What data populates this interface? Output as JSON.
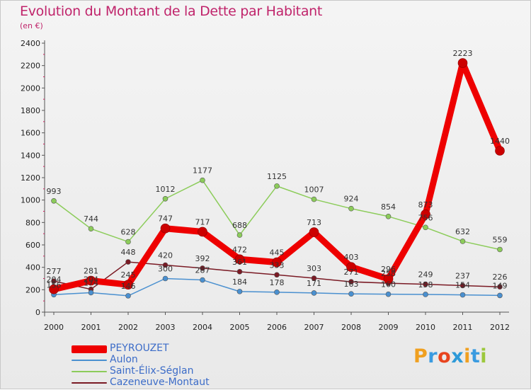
{
  "header": {
    "title": "Evolution du Montant de la Dette par Habitant",
    "subtitle": "(en €)"
  },
  "logo": {
    "letters": [
      "P",
      "r",
      "o",
      "x",
      "i",
      "t",
      "i"
    ],
    "colors": [
      "#f0a020",
      "#3a9be0",
      "#e8441e",
      "#2d9ad8",
      "#f0a020",
      "#3a9be0",
      "#9cc83c"
    ]
  },
  "chart_data": {
    "type": "line",
    "title": "Evolution du Montant de la Dette par Habitant",
    "ylabel": "(en €)",
    "xlabel": "",
    "ylim": [
      0,
      2400
    ],
    "yticks": [
      0,
      200,
      400,
      600,
      800,
      1000,
      1200,
      1400,
      1600,
      1800,
      2000,
      2200,
      2400
    ],
    "categories": [
      "2000",
      "2001",
      "2002",
      "2003",
      "2004",
      "2005",
      "2006",
      "2007",
      "2008",
      "2009",
      "2010",
      "2011",
      "2012"
    ],
    "series": [
      {
        "name": "Saint-Élix-Séglan",
        "color": "#8ccc5a",
        "values": [
          993,
          744,
          628,
          1012,
          1177,
          688,
          1125,
          1007,
          924,
          854,
          756,
          632,
          559
        ]
      },
      {
        "name": "Cazeneuve-Montaut",
        "color": "#7a1a24",
        "values": [
          277,
          204,
          448,
          420,
          392,
          361,
          333,
          303,
          271,
          258,
          249,
          237,
          226
        ]
      },
      {
        "name": "Aulon",
        "color": "#4a90d0",
        "values": [
          156,
          174,
          146,
          300,
          287,
          184,
          178,
          171,
          163,
          160,
          158,
          154,
          149
        ]
      },
      {
        "name": "PEYROUZET",
        "color": "#ee0000",
        "values": [
          204,
          281,
          245,
          747,
          717,
          472,
          445,
          713,
          403,
          296,
          873,
          2223,
          1440
        ]
      }
    ],
    "data_labels": [
      {
        "series": "Saint-Élix-Séglan",
        "labels": [
          "993",
          "744",
          "628",
          "1012",
          "1177",
          "688",
          "1125",
          "1007",
          "924",
          "854",
          "756",
          "632",
          "559"
        ]
      },
      {
        "series": "Cazeneuve-Montaut",
        "labels": [
          "277",
          "204",
          "448",
          "420",
          "392",
          "361",
          "333",
          "303",
          "271",
          "258",
          "249",
          "237",
          "226"
        ]
      },
      {
        "series": "Aulon",
        "labels": [
          "156",
          "174",
          "146",
          "300",
          "287",
          "184",
          "178",
          "171",
          "163",
          "160",
          "158",
          "154",
          "149"
        ]
      },
      {
        "series": "PEYROUZET",
        "labels": [
          "204",
          "281",
          "245",
          "747",
          "717",
          "472",
          "445",
          "713",
          "403",
          "296",
          "873",
          "2223",
          "1440"
        ]
      }
    ],
    "legend": {
      "position": "bottom-left",
      "entries": [
        {
          "label": "PEYROUZET",
          "color": "#ee0000"
        },
        {
          "label": "Aulon",
          "color": "#4a90d0"
        },
        {
          "label": "Saint-Élix-Séglan",
          "color": "#8ccc5a"
        },
        {
          "label": "Cazeneuve-Montaut",
          "color": "#7a1a24"
        }
      ]
    }
  }
}
